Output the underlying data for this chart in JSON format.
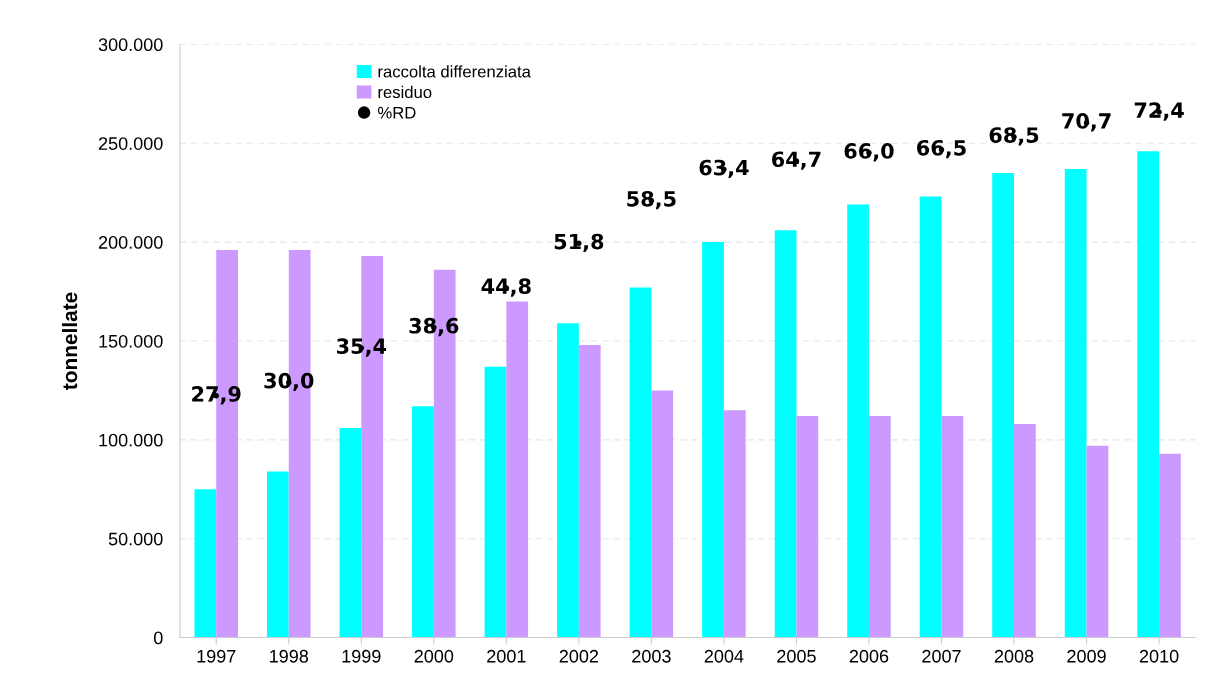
{
  "chart_data": {
    "type": "bar",
    "ylabel": "tonnellate",
    "categories": [
      "1997",
      "1998",
      "1999",
      "2000",
      "2001",
      "2002",
      "2003",
      "2004",
      "2005",
      "2006",
      "2007",
      "2008",
      "2009",
      "2010"
    ],
    "series": [
      {
        "name": "raccolta differenziata",
        "color": "#00ffff",
        "values": [
          75000,
          84000,
          106000,
          117000,
          137000,
          159000,
          177000,
          200000,
          206000,
          219000,
          223000,
          235000,
          237000,
          246000
        ]
      },
      {
        "name": "residuo",
        "color": "#cc99ff",
        "values": [
          196000,
          196000,
          193000,
          186000,
          170000,
          148000,
          125000,
          115000,
          112000,
          112000,
          112000,
          108000,
          97000,
          93000
        ]
      },
      {
        "name": "%RD",
        "type": "scatter",
        "axis": "y2",
        "color": "#000000",
        "marker": "circle",
        "data_labels": true,
        "value_labels": [
          "27,9",
          "30,0",
          "35,4",
          "38,6",
          "44,8",
          "51,8",
          "58,5",
          "63,4",
          "64,7",
          "66,0",
          "66,5",
          "68,5",
          "70,7",
          "72,4"
        ],
        "values": [
          27.9,
          30.0,
          35.4,
          38.6,
          44.8,
          51.8,
          58.5,
          63.4,
          64.7,
          66.0,
          66.5,
          68.5,
          70.7,
          72.4
        ]
      }
    ],
    "ylim": [
      0,
      300000
    ],
    "yticks": [
      0,
      {
        "value": 50000,
        "label": "50.000"
      },
      {
        "value": 100000,
        "label": "100.000"
      },
      {
        "value": 150000,
        "label": "150.000"
      },
      {
        "value": 200000,
        "label": "200.000"
      },
      {
        "value": 250000,
        "label": "250.000"
      },
      {
        "value": 300000,
        "label": "300.000"
      }
    ],
    "y2lim": [
      -10,
      83
    ],
    "grid": "y",
    "legend": "top left"
  }
}
